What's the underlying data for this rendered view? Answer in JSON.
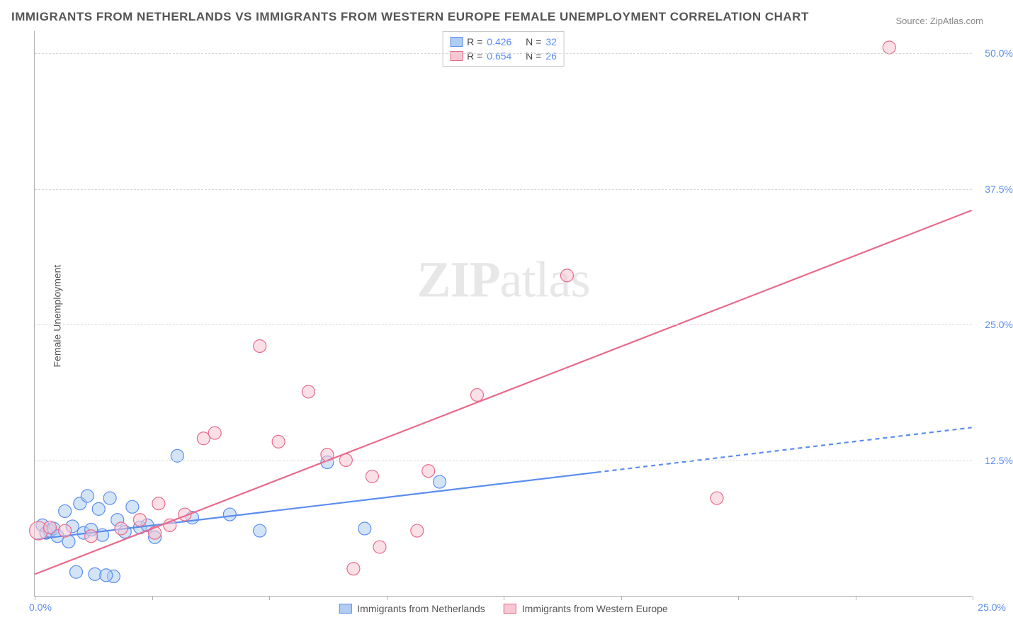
{
  "title": "IMMIGRANTS FROM NETHERLANDS VS IMMIGRANTS FROM WESTERN EUROPE FEMALE UNEMPLOYMENT CORRELATION CHART",
  "source": "Source: ZipAtlas.com",
  "y_axis_label": "Female Unemployment",
  "watermark": "ZIPatlas",
  "chart": {
    "type": "scatter-with-regression",
    "background_color": "#ffffff",
    "grid_color": "#d8d8d8",
    "axis_color": "#b0b0b0",
    "tick_label_color": "#5b8def",
    "xlim": [
      0,
      25
    ],
    "ylim": [
      0,
      52
    ],
    "y_ticks": [
      {
        "value": 12.5,
        "label": "12.5%"
      },
      {
        "value": 25.0,
        "label": "25.0%"
      },
      {
        "value": 37.5,
        "label": "37.5%"
      },
      {
        "value": 50.0,
        "label": "50.0%"
      }
    ],
    "x_ticks_minor": [
      0,
      3.125,
      6.25,
      9.375,
      12.5,
      15.625,
      18.75,
      21.875,
      25
    ],
    "x_origin_label": "0.0%",
    "x_max_label": "25.0%",
    "marker_radius": 9,
    "marker_radius_large": 13,
    "series": [
      {
        "id": "netherlands",
        "label": "Immigrants from Netherlands",
        "color_fill": "#aecdf0",
        "color_stroke": "#5b8def",
        "fill_opacity": 0.55,
        "r_label": "R =",
        "r_value": "0.426",
        "n_label": "N =",
        "n_value": "32",
        "regression": {
          "x1": 0,
          "y1": 5.2,
          "x2": 25,
          "y2": 15.5,
          "solid_until_x": 15.0,
          "line_width": 2.2
        },
        "points": [
          {
            "x": 0.2,
            "y": 6.5
          },
          {
            "x": 0.3,
            "y": 5.8
          },
          {
            "x": 0.4,
            "y": 6.0
          },
          {
            "x": 0.5,
            "y": 6.2
          },
          {
            "x": 0.6,
            "y": 5.5
          },
          {
            "x": 0.8,
            "y": 7.8
          },
          {
            "x": 0.9,
            "y": 5.0
          },
          {
            "x": 1.0,
            "y": 6.4
          },
          {
            "x": 1.1,
            "y": 2.2
          },
          {
            "x": 1.2,
            "y": 8.5
          },
          {
            "x": 1.3,
            "y": 5.8
          },
          {
            "x": 1.4,
            "y": 9.2
          },
          {
            "x": 1.5,
            "y": 6.1
          },
          {
            "x": 1.6,
            "y": 2.0
          },
          {
            "x": 1.7,
            "y": 8.0
          },
          {
            "x": 1.8,
            "y": 5.6
          },
          {
            "x": 2.0,
            "y": 9.0
          },
          {
            "x": 2.1,
            "y": 1.8
          },
          {
            "x": 2.2,
            "y": 7.0
          },
          {
            "x": 2.4,
            "y": 5.9
          },
          {
            "x": 2.6,
            "y": 8.2
          },
          {
            "x": 2.8,
            "y": 6.3
          },
          {
            "x": 3.0,
            "y": 6.5
          },
          {
            "x": 3.2,
            "y": 5.4
          },
          {
            "x": 3.8,
            "y": 12.9
          },
          {
            "x": 4.2,
            "y": 7.2
          },
          {
            "x": 5.2,
            "y": 7.5
          },
          {
            "x": 6.0,
            "y": 6.0
          },
          {
            "x": 7.8,
            "y": 12.3
          },
          {
            "x": 8.8,
            "y": 6.2
          },
          {
            "x": 10.8,
            "y": 10.5
          },
          {
            "x": 1.9,
            "y": 1.9
          }
        ]
      },
      {
        "id": "western-europe",
        "label": "Immigrants from Western Europe",
        "color_fill": "#f7c7d4",
        "color_stroke": "#e86a8a",
        "fill_opacity": 0.55,
        "r_label": "R =",
        "r_value": "0.654",
        "n_label": "N =",
        "n_value": "26",
        "regression": {
          "x1": 0,
          "y1": 2.0,
          "x2": 25,
          "y2": 35.5,
          "solid_until_x": 25,
          "line_width": 2.2
        },
        "points": [
          {
            "x": 0.1,
            "y": 6.0,
            "r": 13
          },
          {
            "x": 0.4,
            "y": 6.3
          },
          {
            "x": 0.8,
            "y": 6.0
          },
          {
            "x": 1.5,
            "y": 5.5
          },
          {
            "x": 2.3,
            "y": 6.2
          },
          {
            "x": 2.8,
            "y": 7.0
          },
          {
            "x": 3.2,
            "y": 5.8
          },
          {
            "x": 3.3,
            "y": 8.5
          },
          {
            "x": 3.6,
            "y": 6.5
          },
          {
            "x": 4.5,
            "y": 14.5
          },
          {
            "x": 4.8,
            "y": 15.0
          },
          {
            "x": 6.0,
            "y": 23.0
          },
          {
            "x": 6.5,
            "y": 14.2
          },
          {
            "x": 7.3,
            "y": 18.8
          },
          {
            "x": 7.8,
            "y": 13.0
          },
          {
            "x": 8.3,
            "y": 12.5
          },
          {
            "x": 8.5,
            "y": 2.5
          },
          {
            "x": 9.0,
            "y": 11.0
          },
          {
            "x": 9.2,
            "y": 4.5
          },
          {
            "x": 10.2,
            "y": 6.0
          },
          {
            "x": 10.5,
            "y": 11.5
          },
          {
            "x": 11.8,
            "y": 18.5
          },
          {
            "x": 14.2,
            "y": 29.5
          },
          {
            "x": 18.2,
            "y": 9.0
          },
          {
            "x": 22.8,
            "y": 50.5
          },
          {
            "x": 4.0,
            "y": 7.5
          }
        ]
      }
    ],
    "legend_bottom": [
      {
        "series": "netherlands",
        "label": "Immigrants from Netherlands"
      },
      {
        "series": "western-europe",
        "label": "Immigrants from Western Europe"
      }
    ]
  }
}
